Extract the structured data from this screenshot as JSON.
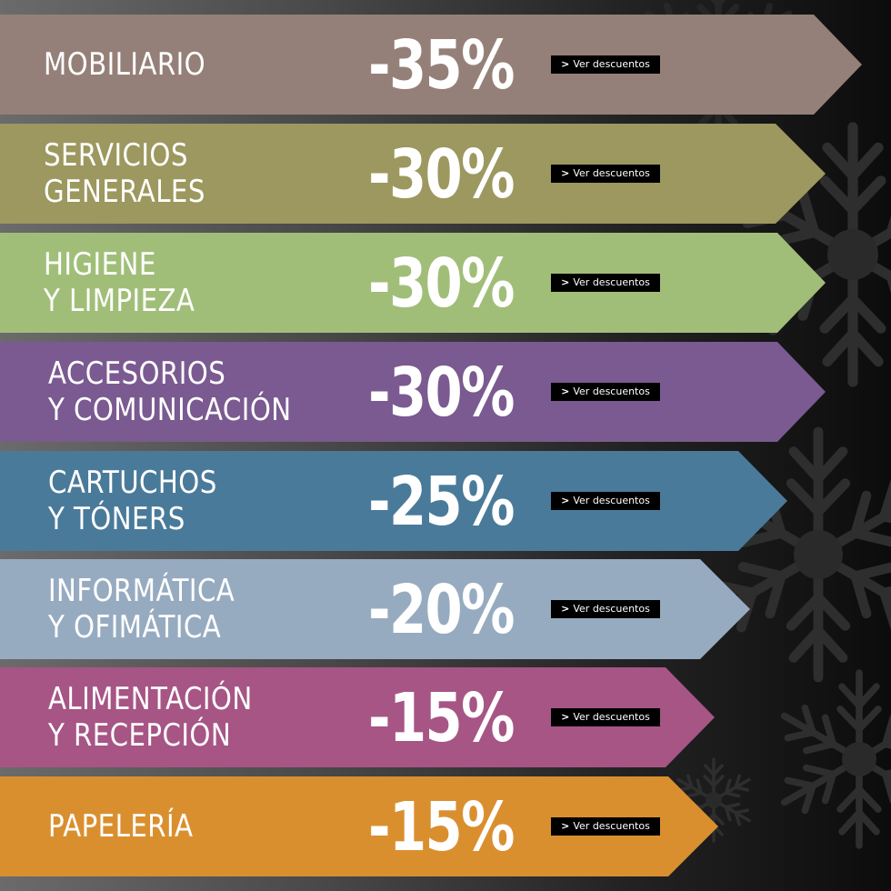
{
  "theme": {
    "background_left": "#6b6b6b",
    "background_right": "#0c0c0c",
    "snowflake_color": "#2e2e2e",
    "button_bg": "#000000",
    "text_color": "#ffffff"
  },
  "button": {
    "chevron": ">",
    "label": "Ver descuentos"
  },
  "categories": [
    {
      "lines": [
        "MOBILIARIO"
      ],
      "discount": "-35%",
      "color": "#958079",
      "cta": "Ver descuentos"
    },
    {
      "lines": [
        "SERVICIOS",
        "GENERALES"
      ],
      "discount": "-30%",
      "color": "#9c985f",
      "cta": "Ver descuentos"
    },
    {
      "lines": [
        "HIGIENE",
        "Y LIMPIEZA"
      ],
      "discount": "-30%",
      "color": "#a1be79",
      "cta": "Ver descuentos"
    },
    {
      "lines": [
        "ACCESORIOS",
        "Y COMUNICACIÓN"
      ],
      "discount": "-30%",
      "color": "#7a5a90",
      "cta": "Ver descuentos"
    },
    {
      "lines": [
        "CARTUCHOS",
        "Y TÓNERS"
      ],
      "discount": "-25%",
      "color": "#4a7a9a",
      "cta": "Ver descuentos"
    },
    {
      "lines": [
        "INFORMÁTICA",
        "Y OFIMÁTICA"
      ],
      "discount": "-20%",
      "color": "#97abc0",
      "cta": "Ver descuentos"
    },
    {
      "lines": [
        "ALIMENTACIÓN",
        "Y RECEPCIÓN"
      ],
      "discount": "-15%",
      "color": "#a65585",
      "cta": "Ver descuentos"
    },
    {
      "lines": [
        "PAPELERÍA"
      ],
      "discount": "-15%",
      "color": "#da8f2f",
      "cta": "Ver descuentos"
    }
  ]
}
